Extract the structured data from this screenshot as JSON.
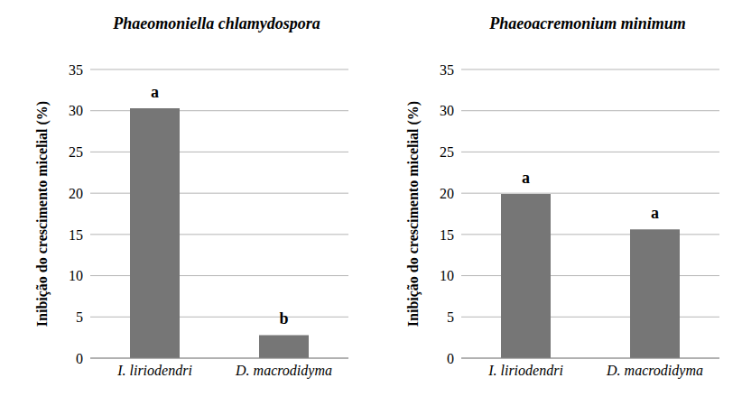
{
  "chart_data": [
    {
      "type": "bar",
      "title": "Phaeomoniella chlamydospora",
      "y_label": "Inibição do crescimento micelial (%)",
      "categories": [
        "I. liriodendri",
        "D. macrodidyma"
      ],
      "values": [
        30.3,
        2.8
      ],
      "annotations": [
        "a",
        "b"
      ],
      "color": "#767676",
      "ylim": [
        0,
        35
      ],
      "yticks": [
        0,
        5,
        10,
        15,
        20,
        25,
        30,
        35
      ],
      "grid": true
    },
    {
      "type": "bar",
      "title": "Phaeoacremonium minimum",
      "y_label": "Inibição do crescimento micelial (%)",
      "categories": [
        "I. liriodendri",
        "D. macrodidyma"
      ],
      "values": [
        19.9,
        15.6
      ],
      "annotations": [
        "a",
        "a"
      ],
      "color": "#767676",
      "ylim": [
        0,
        35
      ],
      "yticks": [
        0,
        5,
        10,
        15,
        20,
        25,
        30,
        35
      ],
      "grid": true
    }
  ]
}
